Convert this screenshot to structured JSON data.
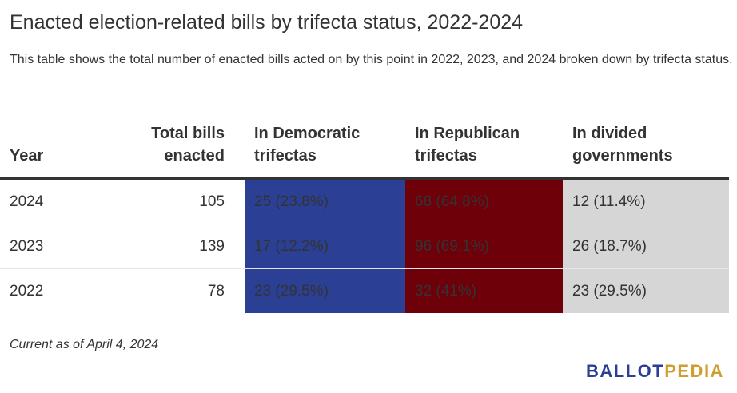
{
  "title": "Enacted election-related bills by trifecta status, 2022-2024",
  "subtitle": "This table shows the total number of enacted bills acted on by this point in 2022, 2023, and 2024 broken down by trifecta status.",
  "colors": {
    "democratic": "#2b3f95",
    "republican": "#6e0009",
    "divided": "#d6d6d6",
    "logo_primary": "#2b3f95",
    "logo_accent": "#cf9e2e"
  },
  "chart_data": {
    "type": "table",
    "columns": {
      "year": "Year",
      "total": [
        "Total bills",
        "enacted"
      ],
      "dem": [
        "In Democratic",
        "trifectas"
      ],
      "rep": [
        "In Republican",
        "trifectas"
      ],
      "div": [
        "In divided",
        "governments"
      ]
    },
    "rows": [
      {
        "year": "2024",
        "total": "105",
        "dem": "25 (23.8%)",
        "rep": "68 (64.8%)",
        "div": "12 (11.4%)"
      },
      {
        "year": "2023",
        "total": "139",
        "dem": "17 (12.2%)",
        "rep": "96 (69.1%)",
        "div": "26 (18.7%)"
      },
      {
        "year": "2022",
        "total": "78",
        "dem": "23 (29.5%)",
        "rep": "32 (41%)",
        "div": "23 (29.5%)"
      }
    ]
  },
  "note": "Current as of April 4, 2024",
  "logo": {
    "part1": "BALLOT",
    "part2": "PEDIA"
  }
}
